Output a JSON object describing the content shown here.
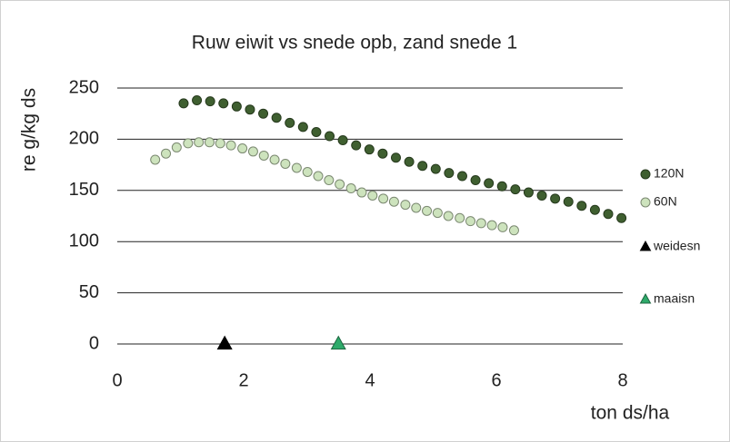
{
  "chart_data": {
    "type": "scatter",
    "title": "Ruw eiwit vs snede opb, zand snede 1",
    "x_label": "ton ds/ha",
    "y_label": "re g/kg ds",
    "xlim": [
      0,
      8
    ],
    "xticks": [
      0,
      2,
      4,
      6,
      8
    ],
    "ylim": [
      0,
      250
    ],
    "yticks": [
      0,
      50,
      100,
      150,
      200,
      250
    ],
    "grid": true,
    "legend": "right",
    "series": [
      {
        "name": "120N",
        "color": "#3f5f30",
        "marker": "circle",
        "x": [
          1.05,
          1.26,
          1.47,
          1.68,
          1.89,
          2.1,
          2.31,
          2.52,
          2.73,
          2.94,
          3.15,
          3.36,
          3.57,
          3.78,
          3.99,
          4.2,
          4.41,
          4.62,
          4.83,
          5.04,
          5.25,
          5.46,
          5.67,
          5.88,
          6.09,
          6.3,
          6.51,
          6.72,
          6.93,
          7.14,
          7.35,
          7.56,
          7.77,
          7.98
        ],
        "values": [
          235,
          238,
          237,
          235,
          232,
          229,
          225,
          221,
          216,
          212,
          207,
          203,
          199,
          194,
          190,
          186,
          182,
          178,
          174,
          171,
          167,
          164,
          160,
          157,
          154,
          151,
          148,
          145,
          142,
          139,
          135,
          131,
          127,
          123
        ]
      },
      {
        "name": "60N",
        "color": "#cde3bd",
        "marker": "circle",
        "x": [
          0.6,
          0.77,
          0.94,
          1.12,
          1.29,
          1.46,
          1.63,
          1.8,
          1.98,
          2.15,
          2.32,
          2.49,
          2.66,
          2.84,
          3.01,
          3.18,
          3.35,
          3.52,
          3.7,
          3.87,
          4.04,
          4.21,
          4.38,
          4.56,
          4.73,
          4.9,
          5.07,
          5.24,
          5.42,
          5.59,
          5.76,
          5.93,
          6.1,
          6.28
        ],
        "values": [
          180,
          186,
          192,
          196,
          197,
          197,
          196,
          194,
          191,
          188,
          184,
          180,
          176,
          172,
          168,
          164,
          160,
          156,
          152,
          148,
          145,
          142,
          139,
          136,
          133,
          130,
          128,
          125,
          123,
          120,
          118,
          116,
          114,
          111
        ]
      },
      {
        "name": "weidesn",
        "color": "#000000",
        "marker": "triangle",
        "x": [
          1.7
        ],
        "values": [
          0
        ]
      },
      {
        "name": "maaisn",
        "color": "#2eaa6a",
        "marker": "triangle",
        "x": [
          3.5
        ],
        "values": [
          0
        ]
      }
    ]
  }
}
